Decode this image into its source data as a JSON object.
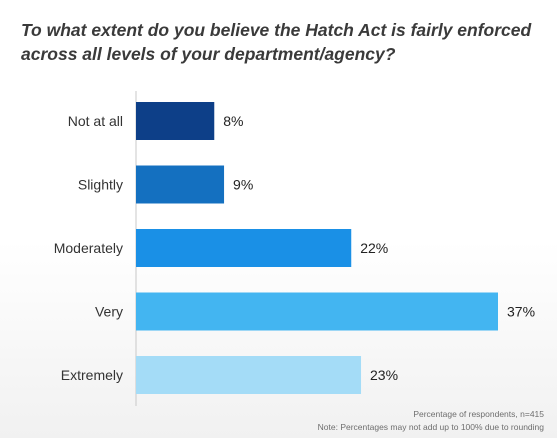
{
  "chart_data": {
    "type": "bar",
    "orientation": "horizontal",
    "title": "To what extent do you believe the Hatch Act is fairly enforced across all levels of your department/agency?",
    "categories": [
      "Not at all",
      "Slightly",
      "Moderately",
      "Very",
      "Extremely"
    ],
    "values": [
      8,
      9,
      22,
      37,
      23
    ],
    "value_labels": [
      "8%",
      "9%",
      "22%",
      "37%",
      "23%"
    ],
    "unit": "%",
    "colors": [
      "#0d3f88",
      "#1470c0",
      "#1a90e6",
      "#43b5f1",
      "#a4dcf7"
    ],
    "xlim": [
      0,
      37
    ],
    "grid": false,
    "legend": "none"
  },
  "footnotes": {
    "line1": "Percentage of respondents, n=415",
    "line2": "Note: Percentages may not add up to 100% due to rounding"
  }
}
